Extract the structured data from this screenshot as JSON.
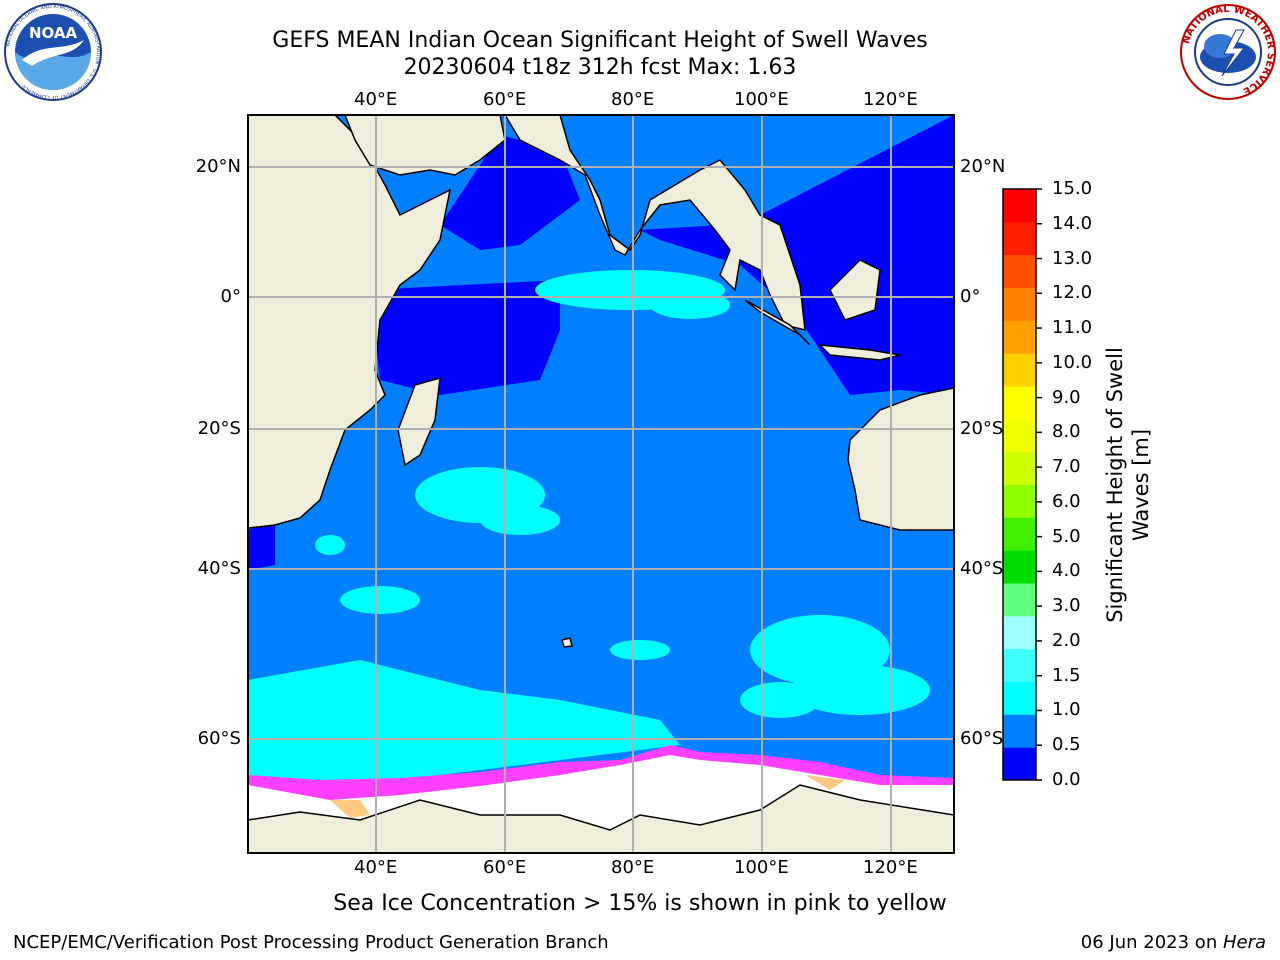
{
  "title": {
    "line1": "GEFS MEAN Indian Ocean Significant Height of Swell Waves",
    "line2": "20230604 t18z 312h fcst   Max: 1.63"
  },
  "map": {
    "lon_labels": [
      "40°E",
      "60°E",
      "80°E",
      "100°E",
      "120°E"
    ],
    "lat_labels": [
      "20°N",
      "0°",
      "20°S",
      "40°S",
      "60°S"
    ],
    "lon_range": [
      20,
      130
    ],
    "lat_range": [
      -75,
      27
    ]
  },
  "colorbar": {
    "label": "Significant Height of Swell Waves [m]",
    "label_line1": "Significant Height of Swell",
    "label_line2": "Waves [m]",
    "ticks": [
      "15.0",
      "14.0",
      "13.0",
      "12.0",
      "11.0",
      "10.0",
      "9.0",
      "8.0",
      "7.0",
      "6.0",
      "5.0",
      "4.0",
      "3.0",
      "2.0",
      "1.5",
      "1.0",
      "0.5",
      "0.0"
    ],
    "colors": [
      "#0000ff",
      "#0080ff",
      "#00ffff",
      "#40ffff",
      "#a0ffff",
      "#60ff80",
      "#00dd00",
      "#40f000",
      "#90ff00",
      "#ccff00",
      "#f0ff00",
      "#ffff00",
      "#ffd000",
      "#ffa000",
      "#ff8000",
      "#ff5000",
      "#ff2000",
      "#ff0000"
    ]
  },
  "note": "Sea Ice Concentration > 15% is shown in pink to yellow",
  "footer": {
    "left": "NCEP/EMC/Verification Post Processing Product Generation Branch",
    "right_date": "06 Jun 2023 on ",
    "right_machine": "Hera"
  },
  "logos": {
    "noaa": "NOAA",
    "noaa_ring": "NATIONAL OCEANIC AND ATMOSPHERIC ADMINISTRATION · U.S. DEPARTMENT OF COMMERCE",
    "nws_ring": "NATIONAL WEATHER SERVICE"
  }
}
